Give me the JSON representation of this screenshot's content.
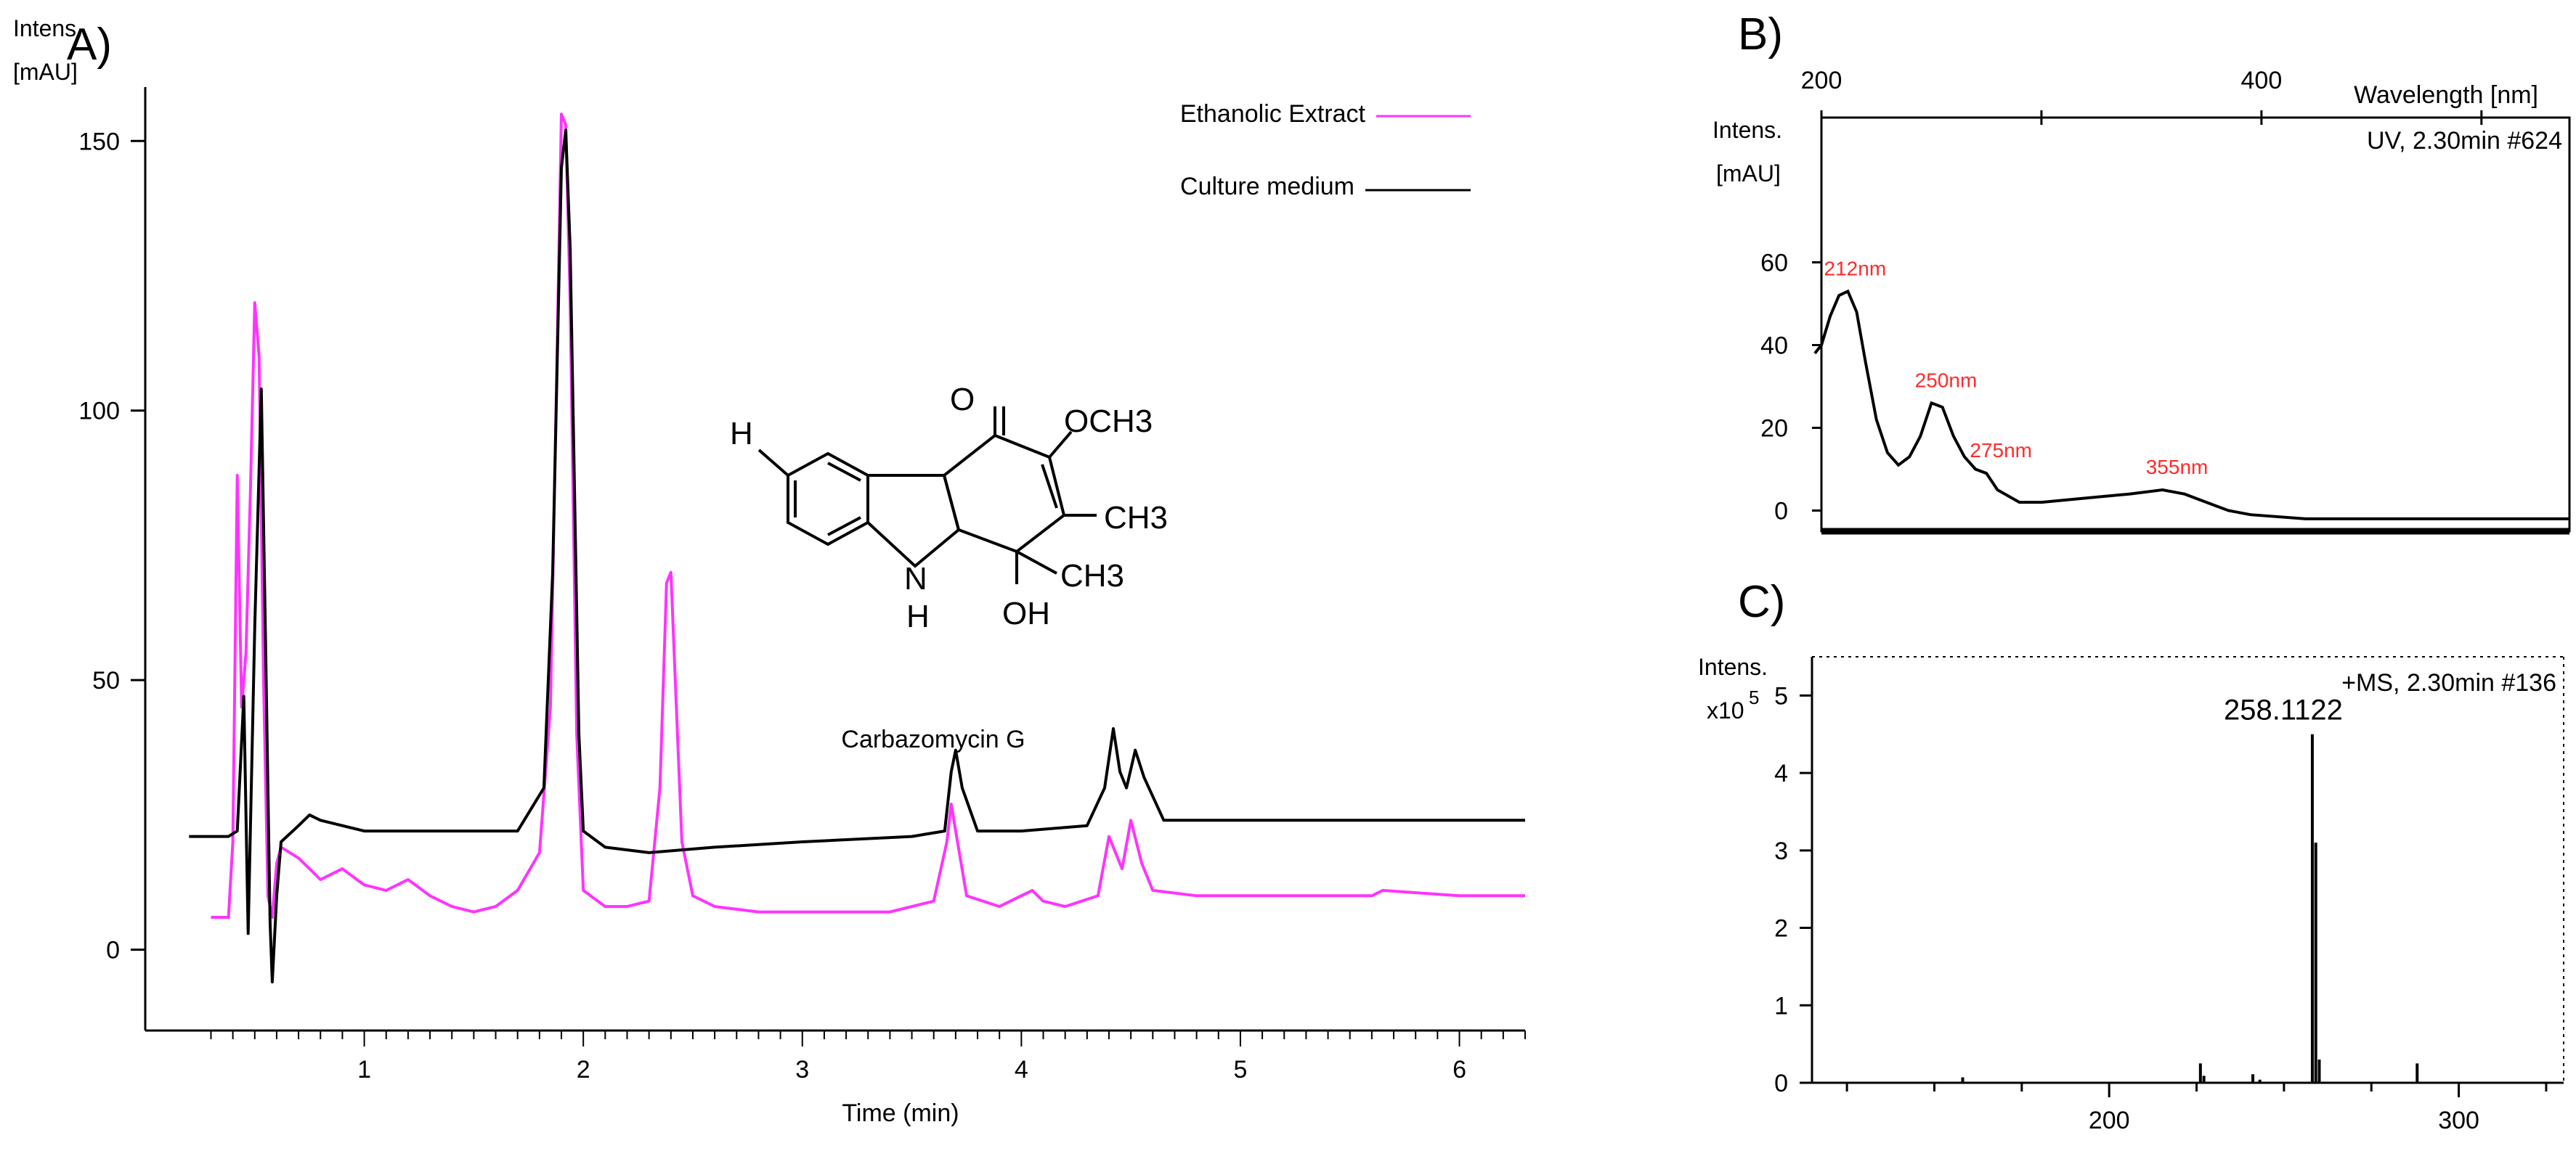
{
  "chart_data": [
    {
      "panel": "A)",
      "type": "line",
      "ylabel": "Intens.\n[mAU]",
      "ylabel_lines": [
        "Intens.",
        "[mAU]"
      ],
      "xlabel": "Time (min)",
      "xlim": [
        0,
        6.3
      ],
      "ylim": [
        -15,
        160
      ],
      "xticks": [
        1,
        2,
        3,
        4,
        5,
        6
      ],
      "yticks": [
        0,
        50,
        100,
        150
      ],
      "legend_position": "top-right",
      "series": [
        {
          "name": "Ethanolic  Extract",
          "color": "#ff33ff",
          "points": [
            [
              0.3,
              6
            ],
            [
              0.38,
              6
            ],
            [
              0.4,
              20
            ],
            [
              0.42,
              88
            ],
            [
              0.44,
              45
            ],
            [
              0.46,
              55
            ],
            [
              0.48,
              85
            ],
            [
              0.5,
              120
            ],
            [
              0.52,
              110
            ],
            [
              0.54,
              50
            ],
            [
              0.56,
              10
            ],
            [
              0.58,
              6
            ],
            [
              0.6,
              16
            ],
            [
              0.62,
              19
            ],
            [
              0.7,
              17
            ],
            [
              0.8,
              13
            ],
            [
              0.9,
              15
            ],
            [
              1.0,
              12
            ],
            [
              1.1,
              11
            ],
            [
              1.2,
              13
            ],
            [
              1.3,
              10
            ],
            [
              1.4,
              8
            ],
            [
              1.5,
              7
            ],
            [
              1.6,
              8
            ],
            [
              1.7,
              11
            ],
            [
              1.8,
              18
            ],
            [
              1.85,
              45
            ],
            [
              1.88,
              110
            ],
            [
              1.9,
              155
            ],
            [
              1.92,
              153
            ],
            [
              1.94,
              120
            ],
            [
              1.97,
              40
            ],
            [
              2.0,
              11
            ],
            [
              2.1,
              8
            ],
            [
              2.2,
              8
            ],
            [
              2.3,
              9
            ],
            [
              2.35,
              30
            ],
            [
              2.38,
              68
            ],
            [
              2.4,
              70
            ],
            [
              2.42,
              50
            ],
            [
              2.45,
              20
            ],
            [
              2.5,
              10
            ],
            [
              2.6,
              8
            ],
            [
              2.8,
              7
            ],
            [
              3.0,
              7
            ],
            [
              3.4,
              7
            ],
            [
              3.6,
              9
            ],
            [
              3.66,
              20
            ],
            [
              3.68,
              27
            ],
            [
              3.7,
              22
            ],
            [
              3.75,
              10
            ],
            [
              3.9,
              8
            ],
            [
              4.05,
              11
            ],
            [
              4.1,
              9
            ],
            [
              4.2,
              8
            ],
            [
              4.35,
              10
            ],
            [
              4.4,
              21
            ],
            [
              4.43,
              18
            ],
            [
              4.46,
              15
            ],
            [
              4.5,
              24
            ],
            [
              4.55,
              16
            ],
            [
              4.6,
              11
            ],
            [
              4.8,
              10
            ],
            [
              5.2,
              10
            ],
            [
              5.6,
              10
            ],
            [
              5.65,
              11
            ],
            [
              6.0,
              10
            ],
            [
              6.3,
              10
            ]
          ]
        },
        {
          "name": "Culture  medium",
          "color": "#000000",
          "points": [
            [
              0.2,
              21
            ],
            [
              0.38,
              21
            ],
            [
              0.42,
              22
            ],
            [
              0.45,
              47
            ],
            [
              0.47,
              3
            ],
            [
              0.5,
              60
            ],
            [
              0.53,
              104
            ],
            [
              0.55,
              55
            ],
            [
              0.57,
              5
            ],
            [
              0.58,
              -6
            ],
            [
              0.6,
              10
            ],
            [
              0.62,
              20
            ],
            [
              0.7,
              23
            ],
            [
              0.75,
              25
            ],
            [
              0.8,
              24
            ],
            [
              1.0,
              22
            ],
            [
              1.5,
              22
            ],
            [
              1.7,
              22
            ],
            [
              1.82,
              30
            ],
            [
              1.86,
              70
            ],
            [
              1.9,
              145
            ],
            [
              1.92,
              152
            ],
            [
              1.94,
              130
            ],
            [
              1.98,
              40
            ],
            [
              2.0,
              22
            ],
            [
              2.1,
              19
            ],
            [
              2.3,
              18
            ],
            [
              2.6,
              19
            ],
            [
              3.0,
              20
            ],
            [
              3.5,
              21
            ],
            [
              3.65,
              22
            ],
            [
              3.68,
              33
            ],
            [
              3.7,
              37
            ],
            [
              3.73,
              30
            ],
            [
              3.8,
              22
            ],
            [
              4.0,
              22
            ],
            [
              4.3,
              23
            ],
            [
              4.38,
              30
            ],
            [
              4.42,
              41
            ],
            [
              4.45,
              33
            ],
            [
              4.48,
              30
            ],
            [
              4.52,
              37
            ],
            [
              4.56,
              32
            ],
            [
              4.65,
              24
            ],
            [
              5.0,
              24
            ],
            [
              5.5,
              24
            ],
            [
              6.0,
              24
            ],
            [
              6.3,
              24
            ]
          ]
        }
      ],
      "annotation": {
        "compound_name": "Carbazomycin G",
        "atom_labels": [
          "O",
          "OCH3",
          "CH3",
          "CH3",
          "OH",
          "H",
          "N",
          "H"
        ]
      }
    },
    {
      "panel": "B)",
      "type": "line",
      "ylabel": "Intens.\n[mAU]",
      "ylabel_lines": [
        "Intens.",
        "[mAU]"
      ],
      "xlabel": "Wavelength  [nm]",
      "spectrum_label": "UV, 2.30min #624",
      "xlim": [
        200,
        540
      ],
      "ylim": [
        -5,
        95
      ],
      "xticks": [
        200,
        400
      ],
      "yticks": [
        0,
        20,
        40,
        60
      ],
      "color": "#000000",
      "points": [
        [
          197,
          38
        ],
        [
          200,
          40
        ],
        [
          204,
          47
        ],
        [
          208,
          52
        ],
        [
          212,
          53
        ],
        [
          216,
          48
        ],
        [
          220,
          36
        ],
        [
          225,
          22
        ],
        [
          230,
          14
        ],
        [
          235,
          11
        ],
        [
          240,
          13
        ],
        [
          245,
          18
        ],
        [
          250,
          26
        ],
        [
          255,
          25
        ],
        [
          260,
          18
        ],
        [
          265,
          13
        ],
        [
          270,
          10
        ],
        [
          275,
          9
        ],
        [
          280,
          5
        ],
        [
          290,
          2
        ],
        [
          300,
          2
        ],
        [
          320,
          3
        ],
        [
          340,
          4
        ],
        [
          355,
          5
        ],
        [
          365,
          4
        ],
        [
          375,
          2
        ],
        [
          385,
          0
        ],
        [
          395,
          -1
        ],
        [
          420,
          -2
        ],
        [
          450,
          -2
        ],
        [
          480,
          -2
        ],
        [
          510,
          -2
        ],
        [
          540,
          -2
        ]
      ],
      "peak_labels": [
        {
          "x": 212,
          "y": 53,
          "text": "212nm"
        },
        {
          "x": 250,
          "y": 26,
          "text": "250nm"
        },
        {
          "x": 275,
          "y": 9,
          "text": "275nm"
        },
        {
          "x": 355,
          "y": 5,
          "text": "355nm"
        }
      ],
      "peak_label_color": "#ff2a2a"
    },
    {
      "panel": "C)",
      "type": "bar",
      "ylabel_lines": [
        "Intens.",
        "x10"
      ],
      "ylabel_exponent": "5",
      "spectrum_label": "+MS, 2.30min #136",
      "xlim": [
        115,
        330
      ],
      "ylim": [
        0,
        5.5
      ],
      "xticks": [
        200,
        300
      ],
      "yticks": [
        0,
        1,
        2,
        3,
        4,
        5
      ],
      "color": "#000000",
      "peaks": [
        [
          158.1,
          0.07
        ],
        [
          226.1,
          0.25
        ],
        [
          227.1,
          0.09
        ],
        [
          241.1,
          0.11
        ],
        [
          243.1,
          0.04
        ],
        [
          258.1122,
          4.5
        ],
        [
          259.1,
          3.1
        ],
        [
          260.1,
          0.3
        ],
        [
          288.1,
          0.25
        ]
      ],
      "peak_label": {
        "x": 258.1122,
        "y": 4.5,
        "text": "258.1122"
      }
    }
  ]
}
